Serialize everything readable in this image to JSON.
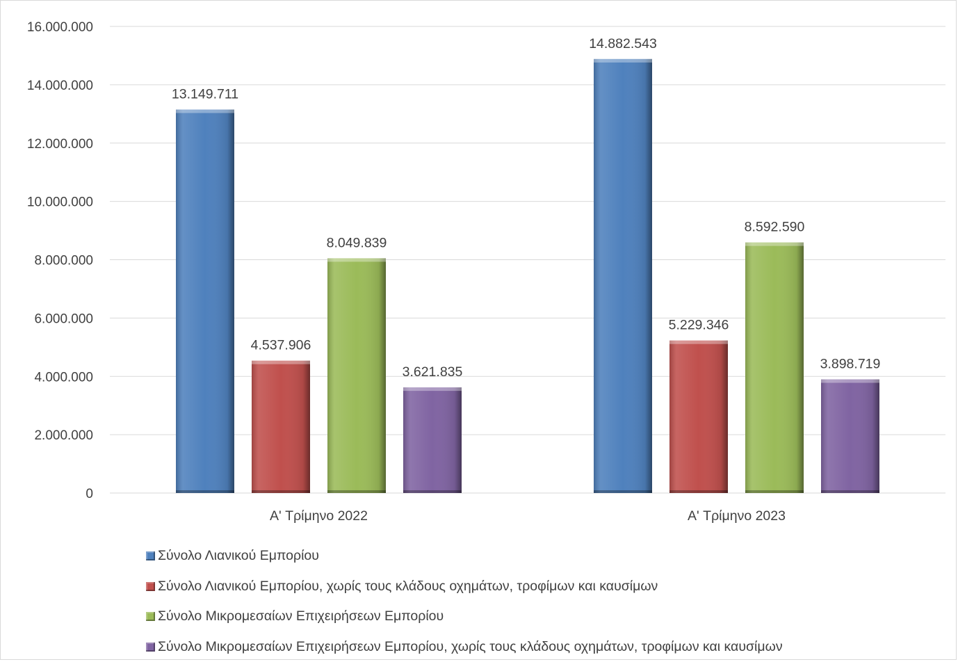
{
  "chart_data": {
    "type": "bar",
    "categories": [
      "A' Τρίμηνο 2022",
      "A' Τρίμηνο 2023"
    ],
    "series": [
      {
        "name": "Σύνολο Λιανικού Εμπορίου",
        "values": [
          13149711,
          14882543
        ],
        "labels": [
          "13.149.711",
          "14.882.543"
        ],
        "color": "#4f81bd"
      },
      {
        "name": "Σύνολο Λιανικού Εμπορίου, χωρίς τους κλάδους οχημάτων, τροφίμων και καυσίμων",
        "values": [
          4537906,
          5229346
        ],
        "labels": [
          "4.537.906",
          "5.229.346"
        ],
        "color": "#c0504d"
      },
      {
        "name": "Σύνολο Μικρομεσαίων Επιχειρήσεων Εμπορίου",
        "values": [
          8049839,
          8592590
        ],
        "labels": [
          "8.049.839",
          "8.592.590"
        ],
        "color": "#9bbb59"
      },
      {
        "name": "Σύνολο Μικρομεσαίων Επιχειρήσεων Εμπορίου, χωρίς τους κλάδους οχημάτων, τροφίμων και καυσίμων",
        "values": [
          3621835,
          3898719
        ],
        "labels": [
          "3.621.835",
          "3.898.719"
        ],
        "color": "#8064a2"
      }
    ],
    "ylim": [
      0,
      16000000
    ],
    "yticks": [
      0,
      2000000,
      4000000,
      6000000,
      8000000,
      10000000,
      12000000,
      14000000,
      16000000
    ],
    "ytick_labels": [
      "0",
      "2.000.000",
      "4.000.000",
      "6.000.000",
      "8.000.000",
      "10.000.000",
      "12.000.000",
      "14.000.000",
      "16.000.000"
    ],
    "grid": true,
    "legend_position": "bottom-left"
  }
}
